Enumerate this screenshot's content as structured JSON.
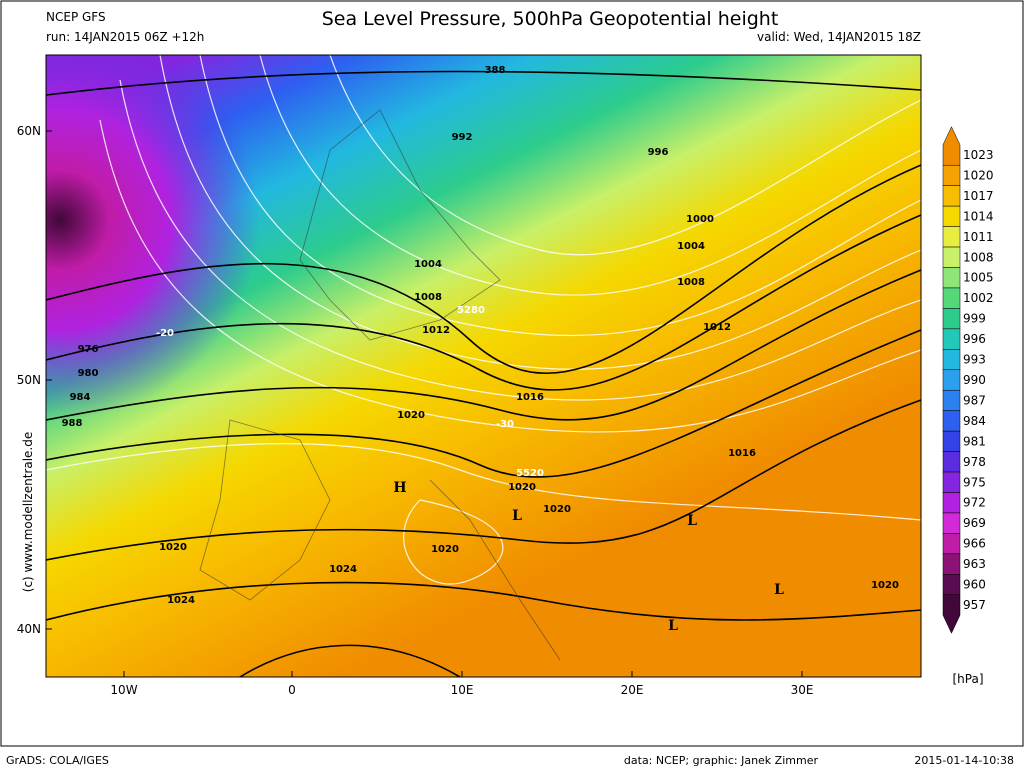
{
  "header": {
    "model": "NCEP GFS",
    "title": "Sea Level Pressure, 500hPa Geopotential height",
    "run": "run: 14JAN2015 06Z +12h",
    "valid": "valid: Wed, 14JAN2015 18Z"
  },
  "axes": {
    "lat_labels": [
      "60N",
      "50N",
      "40N"
    ],
    "lon_labels": [
      "10W",
      "0",
      "10E",
      "20E",
      "30E"
    ]
  },
  "colorbar": {
    "labels": [
      "1023",
      "1020",
      "1017",
      "1014",
      "1011",
      "1008",
      "1005",
      "1002",
      "999",
      "996",
      "993",
      "990",
      "987",
      "984",
      "981",
      "978",
      "975",
      "972",
      "969",
      "966",
      "963",
      "960",
      "957"
    ],
    "colors": [
      "#f08c00",
      "#f5a300",
      "#f8bd00",
      "#f5d800",
      "#e8ee40",
      "#c8f068",
      "#8fe678",
      "#55d878",
      "#2dcc8c",
      "#22c8b8",
      "#22b8e0",
      "#2aa0ee",
      "#2d80f0",
      "#2d5ff0",
      "#3440e8",
      "#5a2ee0",
      "#8426e0",
      "#b022e0",
      "#d22ad8",
      "#c01ca8",
      "#8c1278",
      "#5a0c52",
      "#400838"
    ],
    "unit": "[hPa]"
  },
  "credit": "(c) www.modellzentrale.de",
  "map_labels": [
    "388",
    "992",
    "996",
    "1000",
    "1004",
    "1004",
    "1008",
    "1008",
    "1012",
    "1012",
    "5280",
    "976",
    "980",
    "984",
    "988",
    "1016",
    "1020",
    "-30",
    "5520",
    "1020",
    "1020",
    "1020",
    "1020",
    "1024",
    "1024",
    "1016",
    "1020",
    "-20"
  ],
  "pressure_centers": [
    "H",
    "L",
    "L",
    "L",
    "L"
  ],
  "footer": {
    "software": "GrADS: COLA/IGES",
    "source": "data: NCEP; graphic: Janek Zimmer",
    "timestamp": "2015-01-14-10:38"
  }
}
